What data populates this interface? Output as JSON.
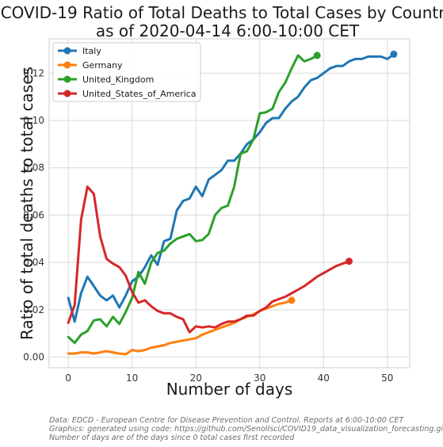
{
  "chart_data": {
    "type": "line",
    "title_line1": "COVID-19  Ratio of Total Deaths to Total Cases by Country",
    "title_line2": "as of 2020-04-14 6:00-10:00 CET",
    "xlabel": "Number of days",
    "ylabel": "Ratio of total deaths to total cases",
    "xlim": [
      -3,
      53.5
    ],
    "ylim": [
      -0.0045,
      0.1345
    ],
    "x_ticks": [
      0,
      10,
      20,
      30,
      40,
      50
    ],
    "y_ticks": [
      0.0,
      0.02,
      0.04,
      0.06,
      0.08,
      0.1,
      0.12
    ],
    "y_tick_labels": [
      "0.00",
      "0.02",
      "0.04",
      "0.06",
      "0.08",
      "0.10",
      "0.12"
    ],
    "grid": true,
    "legend_position": "top-left",
    "series": [
      {
        "name": "Italy",
        "color": "#1f77b4",
        "x": [
          0,
          1,
          2,
          3,
          4,
          5,
          6,
          7,
          8,
          9,
          10,
          11,
          12,
          13,
          14,
          15,
          16,
          17,
          18,
          19,
          20,
          21,
          22,
          23,
          24,
          25,
          26,
          27,
          28,
          29,
          30,
          31,
          32,
          33,
          34,
          35,
          36,
          37,
          38,
          39,
          40,
          41,
          42,
          43,
          44,
          45,
          46,
          47,
          48,
          49,
          50,
          51
        ],
        "values": [
          0.025,
          0.015,
          0.027,
          0.034,
          0.03,
          0.026,
          0.024,
          0.026,
          0.021,
          0.026,
          0.032,
          0.034,
          0.038,
          0.043,
          0.039,
          0.049,
          0.05,
          0.062,
          0.066,
          0.067,
          0.072,
          0.068,
          0.075,
          0.077,
          0.079,
          0.083,
          0.083,
          0.086,
          0.09,
          0.092,
          0.095,
          0.099,
          0.101,
          0.101,
          0.105,
          0.108,
          0.11,
          0.114,
          0.117,
          0.118,
          0.12,
          0.122,
          0.123,
          0.123,
          0.125,
          0.126,
          0.126,
          0.127,
          0.127,
          0.127,
          0.126,
          0.128
        ]
      },
      {
        "name": "Germany",
        "color": "#ff7f0e",
        "x": [
          0,
          1,
          2,
          3,
          4,
          5,
          6,
          7,
          8,
          9,
          10,
          11,
          12,
          13,
          14,
          15,
          16,
          17,
          18,
          19,
          20,
          21,
          22,
          23,
          24,
          25,
          26,
          27,
          28,
          29,
          30,
          31,
          32,
          33,
          34,
          35
        ],
        "values": [
          0.0015,
          0.0015,
          0.002,
          0.002,
          0.0015,
          0.002,
          0.0025,
          0.002,
          0.0015,
          0.0012,
          0.003,
          0.0025,
          0.003,
          0.004,
          0.0045,
          0.005,
          0.006,
          0.0065,
          0.007,
          0.0075,
          0.008,
          0.0095,
          0.0105,
          0.0115,
          0.0125,
          0.0135,
          0.0145,
          0.016,
          0.017,
          0.018,
          0.0195,
          0.0205,
          0.0215,
          0.0225,
          0.023,
          0.024
        ]
      },
      {
        "name": "United_Kingdom",
        "color": "#2ca02c",
        "x": [
          0,
          1,
          2,
          3,
          4,
          5,
          6,
          7,
          8,
          9,
          10,
          11,
          12,
          13,
          14,
          15,
          16,
          17,
          18,
          19,
          20,
          21,
          22,
          23,
          24,
          25,
          26,
          27,
          28,
          29,
          30,
          31,
          32,
          33,
          34,
          35,
          36,
          37,
          38,
          39
        ],
        "values": [
          0.0085,
          0.006,
          0.0095,
          0.011,
          0.0155,
          0.016,
          0.013,
          0.017,
          0.014,
          0.019,
          0.025,
          0.036,
          0.031,
          0.04,
          0.044,
          0.045,
          0.048,
          0.05,
          0.051,
          0.052,
          0.049,
          0.0495,
          0.052,
          0.06,
          0.063,
          0.064,
          0.072,
          0.086,
          0.087,
          0.092,
          0.103,
          0.1035,
          0.105,
          0.112,
          0.116,
          0.122,
          0.1275,
          0.125,
          0.126,
          0.1275
        ]
      },
      {
        "name": "United_States_of_America",
        "color": "#d62728",
        "x": [
          0,
          1,
          2,
          3,
          4,
          5,
          6,
          7,
          8,
          9,
          10,
          11,
          12,
          13,
          14,
          15,
          16,
          17,
          18,
          19,
          20,
          21,
          22,
          23,
          24,
          25,
          26,
          27,
          28,
          29,
          30,
          31,
          32,
          33,
          34,
          35,
          36,
          37,
          38,
          39,
          40,
          41,
          42,
          43,
          44
        ],
        "values": [
          0.0145,
          0.022,
          0.058,
          0.072,
          0.069,
          0.051,
          0.0415,
          0.0395,
          0.038,
          0.0345,
          0.0275,
          0.023,
          0.024,
          0.0215,
          0.0195,
          0.0185,
          0.0185,
          0.017,
          0.016,
          0.0105,
          0.013,
          0.0125,
          0.013,
          0.0125,
          0.014,
          0.015,
          0.015,
          0.016,
          0.0175,
          0.0175,
          0.0195,
          0.021,
          0.0235,
          0.0245,
          0.0255,
          0.027,
          0.0285,
          0.03,
          0.032,
          0.034,
          0.0355,
          0.037,
          0.0385,
          0.0395,
          0.0405
        ]
      }
    ]
  },
  "footnotes": {
    "line1": "Data: EDCD - European Centre for Disease Prevention and Control. Reports at 6:00-10:00 CET",
    "line2": "Graphics: generated using code: https://github.com/SenolIsci/COVID19_data_visualization_forecasting.git",
    "line3": "Number of days are of the days since 0 total cases first recorded"
  }
}
